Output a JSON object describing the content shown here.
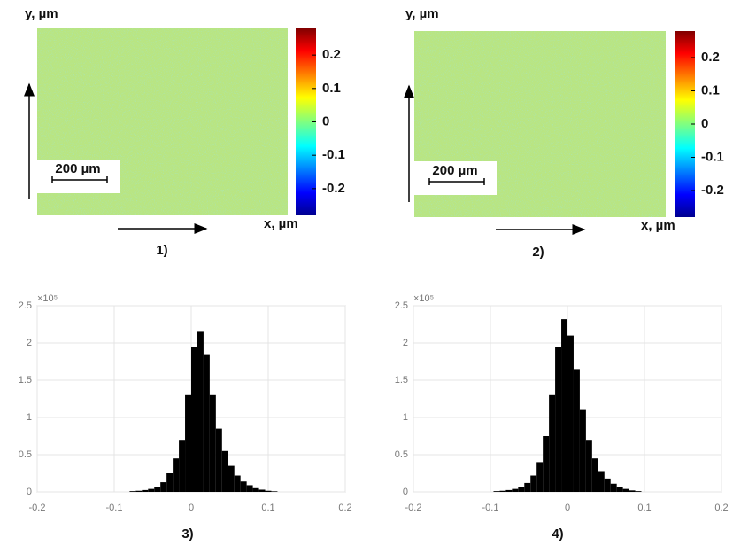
{
  "chart_data": [
    {
      "type": "heatmap",
      "caption": "1)",
      "ylabel": "y, µm",
      "xlabel": "x, µm",
      "scale_bar": "200  µm",
      "colorbar_lim": [
        -0.28,
        0.28
      ],
      "colorbar_ticks": [
        0.2,
        0.1,
        0,
        -0.1,
        -0.2
      ]
    },
    {
      "type": "heatmap",
      "caption": "2)",
      "ylabel": "y, µm",
      "xlabel": "x, µm",
      "scale_bar": "200  µm",
      "colorbar_lim": [
        -0.28,
        0.28
      ],
      "colorbar_ticks": [
        0.2,
        0.1,
        0,
        -0.1,
        -0.2
      ]
    },
    {
      "type": "histogram",
      "caption": "3)",
      "y_exponent": "×10⁵",
      "color": "#000000",
      "grid": true,
      "bins": [
        -0.08,
        -0.072,
        -0.064,
        -0.056,
        -0.048,
        -0.04,
        -0.032,
        -0.024,
        -0.016,
        -0.008,
        0,
        0.008,
        0.016,
        0.024,
        0.032,
        0.04,
        0.048,
        0.056,
        0.064,
        0.072,
        0.08,
        0.088,
        0.096,
        0.104,
        0.112
      ],
      "values": [
        0.01,
        0.015,
        0.025,
        0.04,
        0.07,
        0.13,
        0.25,
        0.45,
        0.7,
        1.3,
        1.95,
        2.15,
        1.85,
        1.3,
        0.85,
        0.55,
        0.35,
        0.22,
        0.14,
        0.09,
        0.05,
        0.03,
        0.015,
        0.008
      ],
      "xlim": [
        -0.2,
        0.2
      ],
      "xticks": [
        -0.2,
        -0.1,
        0,
        0.1,
        0.2
      ],
      "ylim": [
        0,
        2.5
      ],
      "yticks": [
        0,
        0.5,
        1,
        1.5,
        2,
        2.5
      ]
    },
    {
      "type": "histogram",
      "caption": "4)",
      "y_exponent": "×10⁵",
      "color": "#000000",
      "grid": true,
      "bins": [
        -0.096,
        -0.088,
        -0.08,
        -0.072,
        -0.064,
        -0.056,
        -0.048,
        -0.04,
        -0.032,
        -0.024,
        -0.016,
        -0.008,
        0,
        0.008,
        0.016,
        0.024,
        0.032,
        0.04,
        0.048,
        0.056,
        0.064,
        0.072,
        0.08,
        0.088,
        0.096
      ],
      "values": [
        0.01,
        0.015,
        0.025,
        0.04,
        0.07,
        0.12,
        0.22,
        0.4,
        0.75,
        1.3,
        1.95,
        2.32,
        2.1,
        1.65,
        1.1,
        0.7,
        0.45,
        0.28,
        0.18,
        0.11,
        0.07,
        0.04,
        0.02,
        0.01
      ],
      "xlim": [
        -0.2,
        0.2
      ],
      "xticks": [
        -0.2,
        -0.1,
        0,
        0.1,
        0.2
      ],
      "ylim": [
        0,
        2.5
      ],
      "yticks": [
        0,
        0.5,
        1,
        1.5,
        2,
        2.5
      ]
    }
  ]
}
